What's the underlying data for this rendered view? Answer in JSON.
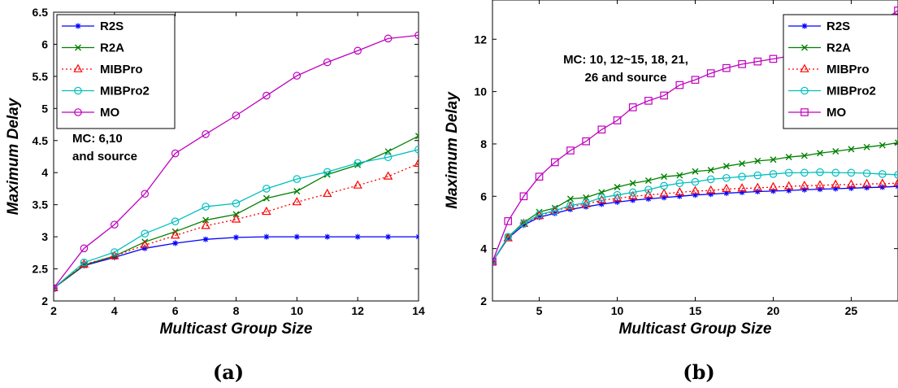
{
  "chart_data": [
    {
      "id": "a",
      "type": "line",
      "caption": "(a)",
      "xlabel": "Multicast Group Size",
      "ylabel": "Maximum Delay",
      "xlim": [
        2,
        14
      ],
      "ylim": [
        2,
        6.5
      ],
      "xticks": [
        2,
        4,
        6,
        8,
        10,
        12,
        14
      ],
      "yticks": [
        2,
        2.5,
        3,
        3.5,
        4,
        4.5,
        5,
        5.5,
        6,
        6.5
      ],
      "annotation": [
        "MC: 6,10",
        "and source"
      ],
      "legend_position": "top-left",
      "x": [
        2,
        3,
        4,
        5,
        6,
        7,
        8,
        9,
        10,
        11,
        12,
        13,
        14
      ],
      "series": [
        {
          "name": "R2S",
          "color": "#0000ff",
          "marker": "star",
          "dash": "",
          "values": [
            2.2,
            2.55,
            2.68,
            2.82,
            2.9,
            2.96,
            2.99,
            3.0,
            3.0,
            3.0,
            3.0,
            3.0,
            3.0
          ]
        },
        {
          "name": "R2A",
          "color": "#008000",
          "marker": "x",
          "dash": "",
          "values": [
            2.2,
            2.56,
            2.7,
            2.92,
            3.08,
            3.26,
            3.35,
            3.6,
            3.71,
            3.97,
            4.12,
            4.33,
            4.57
          ]
        },
        {
          "name": "MIBPro",
          "color": "#ff0000",
          "marker": "triangle",
          "dash": "2,3",
          "values": [
            2.2,
            2.57,
            2.7,
            2.87,
            3.02,
            3.17,
            3.27,
            3.39,
            3.54,
            3.67,
            3.8,
            3.94,
            4.14
          ]
        },
        {
          "name": "MIBPro2",
          "color": "#00bfbf",
          "marker": "circle",
          "dash": "",
          "values": [
            2.2,
            2.6,
            2.76,
            3.05,
            3.24,
            3.47,
            3.52,
            3.75,
            3.9,
            4.01,
            4.15,
            4.24,
            4.36
          ]
        },
        {
          "name": "MO",
          "color": "#bf00bf",
          "marker": "circle",
          "dash": "",
          "values": [
            2.2,
            2.82,
            3.19,
            3.67,
            4.3,
            4.6,
            4.89,
            5.2,
            5.51,
            5.72,
            5.9,
            6.09,
            6.14
          ]
        }
      ]
    },
    {
      "id": "b",
      "type": "line",
      "caption": "(b)",
      "xlabel": "Multicast Group Size",
      "ylabel": "Maximum Delay",
      "xlim": [
        2,
        28
      ],
      "ylim": [
        2,
        13.5
      ],
      "xticks": [
        5,
        10,
        15,
        20,
        25
      ],
      "yticks": [
        2,
        4,
        6,
        8,
        10,
        12
      ],
      "annotation": [
        "MC: 10, 12~15, 18, 21,",
        "26 and source"
      ],
      "legend_position": "top-right",
      "x": [
        2,
        3,
        4,
        5,
        6,
        7,
        8,
        9,
        10,
        11,
        12,
        13,
        14,
        15,
        16,
        17,
        18,
        19,
        20,
        21,
        22,
        23,
        24,
        25,
        26,
        27,
        28
      ],
      "series": [
        {
          "name": "R2S",
          "color": "#0000ff",
          "marker": "star",
          "dash": "",
          "values": [
            3.5,
            4.4,
            4.9,
            5.2,
            5.35,
            5.5,
            5.6,
            5.7,
            5.78,
            5.85,
            5.9,
            5.95,
            6.0,
            6.05,
            6.08,
            6.12,
            6.15,
            6.18,
            6.2,
            6.22,
            6.25,
            6.27,
            6.29,
            6.31,
            6.33,
            6.35,
            6.38
          ]
        },
        {
          "name": "R2A",
          "color": "#008000",
          "marker": "x",
          "dash": "",
          "values": [
            3.5,
            4.45,
            5.0,
            5.4,
            5.55,
            5.9,
            5.95,
            6.15,
            6.35,
            6.5,
            6.6,
            6.75,
            6.8,
            6.95,
            7.0,
            7.15,
            7.25,
            7.35,
            7.4,
            7.5,
            7.55,
            7.65,
            7.72,
            7.8,
            7.88,
            7.95,
            8.05
          ]
        },
        {
          "name": "MIBPro",
          "color": "#ff0000",
          "marker": "triangle",
          "dash": "2,3",
          "values": [
            3.5,
            4.4,
            4.95,
            5.25,
            5.45,
            5.6,
            5.7,
            5.85,
            5.92,
            6.0,
            6.05,
            6.1,
            6.15,
            6.2,
            6.22,
            6.28,
            6.3,
            6.32,
            6.35,
            6.38,
            6.4,
            6.42,
            6.44,
            6.45,
            6.47,
            6.48,
            6.5
          ]
        },
        {
          "name": "MIBPro2",
          "color": "#00bfbf",
          "marker": "circle",
          "dash": "",
          "values": [
            3.5,
            4.45,
            4.95,
            5.3,
            5.45,
            5.65,
            5.75,
            5.95,
            6.05,
            6.15,
            6.25,
            6.4,
            6.5,
            6.55,
            6.65,
            6.7,
            6.75,
            6.8,
            6.85,
            6.9,
            6.9,
            6.92,
            6.9,
            6.9,
            6.88,
            6.85,
            6.82
          ]
        },
        {
          "name": "MO",
          "color": "#bf00bf",
          "marker": "square",
          "dash": "",
          "values": [
            3.5,
            5.05,
            6.0,
            6.75,
            7.3,
            7.75,
            8.1,
            8.55,
            8.9,
            9.4,
            9.65,
            9.85,
            10.25,
            10.45,
            10.7,
            10.9,
            11.05,
            11.15,
            11.25,
            11.35,
            11.5,
            11.6,
            11.8,
            12.0,
            12.3,
            12.7,
            13.1
          ]
        }
      ]
    }
  ]
}
